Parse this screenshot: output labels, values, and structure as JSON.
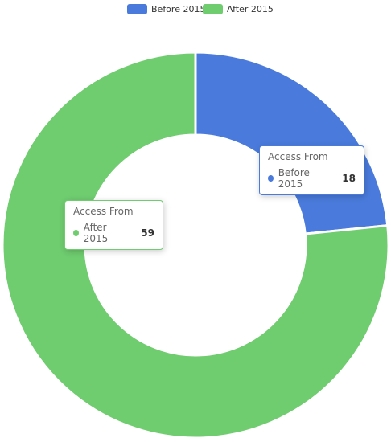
{
  "chart_data": {
    "type": "pie",
    "series_name": "Access From",
    "categories": [
      "Before 2015",
      "After 2015"
    ],
    "values": [
      18,
      59
    ],
    "colors": [
      "#4a7bdc",
      "#6fcc6f"
    ],
    "donut": true,
    "legend": "top"
  }
}
